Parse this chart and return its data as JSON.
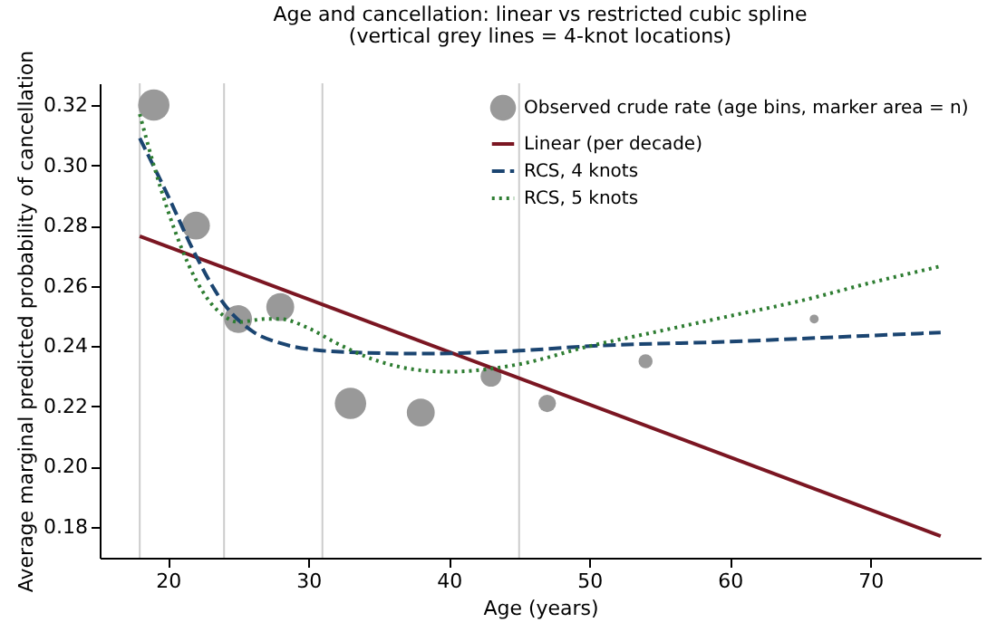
{
  "chart_data": {
    "type": "line",
    "title": "Age and cancellation: linear vs restricted cubic spline",
    "subtitle": "(vertical grey lines = 4-knot locations)",
    "xlabel": "Age (years)",
    "ylabel": "Average marginal predicted probability of cancellation",
    "xlim": [
      15.15,
      77.85
    ],
    "ylim": [
      0.1698,
      0.3272
    ],
    "xticks": [
      20,
      30,
      40,
      50,
      60,
      70
    ],
    "yticks": [
      {
        "value": 0.18,
        "label": "0.18"
      },
      {
        "value": 0.2,
        "label": "0.20"
      },
      {
        "value": 0.22,
        "label": "0.22"
      },
      {
        "value": 0.24,
        "label": "0.24"
      },
      {
        "value": 0.26,
        "label": "0.26"
      },
      {
        "value": 0.28,
        "label": "0.28"
      },
      {
        "value": 0.3,
        "label": "0.30"
      },
      {
        "value": 0.32,
        "label": "0.32"
      }
    ],
    "grid": false,
    "legend": "top right",
    "ref_lines": [
      {
        "axis": "x",
        "value": 18,
        "color": "#cccccc"
      },
      {
        "axis": "x",
        "value": 24,
        "color": "#cccccc"
      },
      {
        "axis": "x",
        "value": 31,
        "color": "#cccccc"
      },
      {
        "axis": "x",
        "value": 45,
        "color": "#cccccc"
      }
    ],
    "series": [
      {
        "name": "Observed crude rate (age bins, marker area = n)",
        "type": "scatter",
        "marker": "circle",
        "color": "#999999",
        "x": [
          19,
          22,
          25,
          28,
          33,
          38,
          43,
          47,
          54,
          66
        ],
        "values": [
          0.32,
          0.28,
          0.249,
          0.253,
          0.221,
          0.218,
          0.23,
          0.221,
          0.235,
          0.249
        ],
        "sizes": [
          1,
          0.79,
          0.79,
          0.79,
          1,
          0.79,
          0.44,
          0.31,
          0.2,
          0.08
        ]
      },
      {
        "name": "Linear (per decade)",
        "type": "line",
        "line_style": "solid",
        "color": "#7b1622",
        "x": [
          18,
          75
        ],
        "values": [
          0.2765,
          0.177
        ]
      },
      {
        "name": "RCS, 4 knots",
        "type": "line",
        "line_style": "dashed",
        "color": "#1b4571",
        "x": [
          18,
          20,
          22,
          24,
          26,
          28,
          30,
          33,
          38,
          45,
          50,
          60,
          70,
          75
        ],
        "values": [
          0.309,
          0.29,
          0.27,
          0.254,
          0.245,
          0.241,
          0.239,
          0.238,
          0.2375,
          0.2385,
          0.24,
          0.2415,
          0.2435,
          0.2445
        ]
      },
      {
        "name": "RCS, 5 knots",
        "type": "line",
        "line_style": "dotted",
        "color": "#2e7d32",
        "x": [
          18,
          19,
          20,
          22,
          24,
          25,
          27,
          28,
          30,
          32,
          35,
          38,
          40,
          45,
          50,
          55,
          60,
          65,
          70,
          75
        ],
        "values": [
          0.317,
          0.3,
          0.285,
          0.262,
          0.25,
          0.248,
          0.249,
          0.249,
          0.246,
          0.241,
          0.235,
          0.232,
          0.2315,
          0.234,
          0.24,
          0.245,
          0.25,
          0.255,
          0.261,
          0.2665
        ]
      }
    ]
  }
}
